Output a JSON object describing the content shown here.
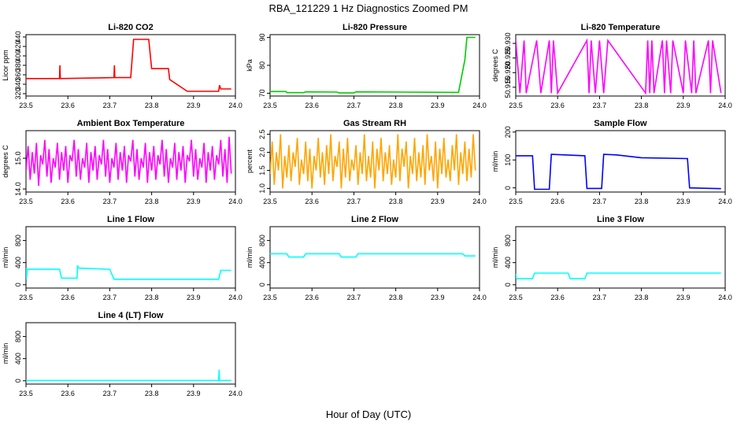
{
  "figure": {
    "title": "RBA_121229  1 Hz Diagnostics Zoomed PM",
    "xlabel": "Hour of Day (UTC)"
  },
  "chart_data": [
    {
      "type": "line",
      "title": "Li-820 CO2",
      "ylabel": "Licor ppm",
      "color": "#ff0000",
      "xlim": [
        23.5,
        24.0
      ],
      "ylim": [
        315,
        445
      ],
      "xticks": [
        "23.5",
        "23.6",
        "23.7",
        "23.8",
        "23.9",
        "24.0"
      ],
      "yticks": [
        "320",
        "340",
        "360",
        "380",
        "400",
        "420",
        "440"
      ],
      "series": [
        {
          "x": [
            23.5,
            23.58,
            23.581,
            23.582,
            23.71,
            23.711,
            23.712,
            23.75,
            23.757,
            23.793,
            23.8,
            23.84,
            23.843,
            23.885,
            23.96,
            23.962,
            23.965,
            23.99
          ],
          "y": [
            352,
            352,
            380,
            352,
            354,
            380,
            354,
            354,
            435,
            435,
            373,
            373,
            350,
            325,
            325,
            338,
            330,
            330
          ]
        }
      ]
    },
    {
      "type": "line",
      "title": "Li-820 Pressure",
      "ylabel": "kPa",
      "color": "#00cc00",
      "xlim": [
        23.5,
        24.0
      ],
      "ylim": [
        69,
        91
      ],
      "xticks": [
        "23.5",
        "23.6",
        "23.7",
        "23.8",
        "23.9",
        "24.0"
      ],
      "yticks": [
        "70",
        "80",
        "90"
      ],
      "series": [
        {
          "x": [
            23.5,
            23.538,
            23.54,
            23.58,
            23.585,
            23.66,
            23.665,
            23.7,
            23.705,
            23.95,
            23.952,
            23.965,
            23.97,
            23.99
          ],
          "y": [
            70.6,
            70.6,
            70.2,
            70.2,
            70.5,
            70.4,
            70.1,
            70.1,
            70.5,
            70.3,
            72,
            82,
            90,
            90
          ]
        }
      ]
    },
    {
      "type": "line",
      "title": "Li-820 Temperature",
      "ylabel": "degrees C",
      "color": "#ff00ff",
      "xlim": [
        23.5,
        24.0
      ],
      "ylim": [
        50.912,
        50.933
      ],
      "xticks": [
        "23.5",
        "23.6",
        "23.7",
        "23.8",
        "23.9",
        "24.0"
      ],
      "yticks": [
        "50.915",
        "50.920",
        "50.925",
        "50.930"
      ],
      "series": [
        {
          "x": [
            23.5,
            23.51,
            23.52,
            23.525,
            23.55,
            23.56,
            23.58,
            23.585,
            23.59,
            23.6,
            23.67,
            23.675,
            23.68,
            23.69,
            23.7,
            23.71,
            23.72,
            23.81,
            23.815,
            23.82,
            23.825,
            23.83,
            23.85,
            23.855,
            23.86,
            23.87,
            23.875,
            23.9,
            23.905,
            23.92,
            23.925,
            23.93,
            23.96,
            23.965,
            23.97,
            23.99
          ],
          "y": [
            50.931,
            50.913,
            50.931,
            50.913,
            50.931,
            50.913,
            50.931,
            50.913,
            50.931,
            50.913,
            50.931,
            50.913,
            50.931,
            50.913,
            50.931,
            50.913,
            50.931,
            50.913,
            50.931,
            50.913,
            50.931,
            50.913,
            50.931,
            50.913,
            50.931,
            50.913,
            50.931,
            50.913,
            50.931,
            50.913,
            50.931,
            50.913,
            50.931,
            50.913,
            50.931,
            50.913
          ]
        }
      ]
    },
    {
      "type": "line",
      "title": "Ambient Box Temperature",
      "ylabel": "degrees C",
      "color": "#ff00ff",
      "xlim": [
        23.5,
        24.0
      ],
      "ylim": [
        13.9,
        15.9
      ],
      "xticks": [
        "23.5",
        "23.6",
        "23.7",
        "23.8",
        "23.9",
        "24.0"
      ],
      "yticks": [
        "14.0",
        "15.0"
      ],
      "series": [
        {
          "x": [
            23.5,
            23.505,
            23.51,
            23.515,
            23.52,
            23.525,
            23.53,
            23.535,
            23.54,
            23.545,
            23.55,
            23.555,
            23.56,
            23.565,
            23.57,
            23.575,
            23.58,
            23.585,
            23.59,
            23.595,
            23.6,
            23.605,
            23.61,
            23.615,
            23.62,
            23.625,
            23.63,
            23.635,
            23.64,
            23.645,
            23.65,
            23.655,
            23.66,
            23.665,
            23.67,
            23.675,
            23.68,
            23.685,
            23.69,
            23.695,
            23.7,
            23.705,
            23.71,
            23.715,
            23.72,
            23.725,
            23.73,
            23.735,
            23.74,
            23.745,
            23.75,
            23.755,
            23.76,
            23.765,
            23.77,
            23.775,
            23.78,
            23.785,
            23.79,
            23.795,
            23.8,
            23.805,
            23.81,
            23.815,
            23.82,
            23.825,
            23.83,
            23.835,
            23.84,
            23.845,
            23.85,
            23.855,
            23.86,
            23.865,
            23.87,
            23.875,
            23.88,
            23.885,
            23.89,
            23.895,
            23.9,
            23.905,
            23.91,
            23.915,
            23.92,
            23.925,
            23.93,
            23.935,
            23.94,
            23.945,
            23.95,
            23.955,
            23.96,
            23.965,
            23.97,
            23.975,
            23.98,
            23.985,
            23.99
          ],
          "y": [
            14.6,
            15.4,
            14.3,
            15.2,
            14.5,
            15.5,
            14.1,
            15.1,
            14.8,
            15.6,
            14.4,
            15.3,
            14.2,
            15.0,
            14.7,
            15.5,
            14.3,
            15.2,
            14.6,
            15.4,
            14.2,
            15.1,
            14.9,
            15.6,
            14.4,
            15.3,
            14.3,
            15.0,
            14.7,
            15.5,
            14.2,
            15.2,
            14.6,
            15.4,
            14.3,
            15.1,
            14.8,
            15.6,
            14.4,
            15.3,
            14.2,
            15.0,
            14.7,
            15.5,
            14.3,
            15.2,
            14.6,
            15.4,
            14.2,
            15.1,
            14.9,
            15.6,
            14.4,
            15.3,
            14.3,
            15.0,
            14.7,
            15.5,
            14.2,
            15.2,
            14.6,
            15.4,
            14.3,
            15.1,
            14.8,
            15.6,
            14.4,
            15.3,
            14.2,
            15.0,
            14.7,
            15.5,
            14.3,
            15.2,
            14.6,
            15.4,
            14.2,
            15.1,
            14.9,
            15.6,
            14.4,
            15.3,
            14.3,
            15.0,
            14.7,
            15.5,
            14.2,
            15.2,
            14.6,
            15.4,
            14.3,
            15.1,
            14.8,
            15.6,
            14.4,
            15.3,
            14.2,
            15.7,
            14.5
          ]
        }
      ]
    },
    {
      "type": "line",
      "title": "Gas Stream RH",
      "ylabel": "percent",
      "color": "#ffa500",
      "xlim": [
        23.5,
        24.0
      ],
      "ylim": [
        0.9,
        2.6
      ],
      "xticks": [
        "23.5",
        "23.6",
        "23.7",
        "23.8",
        "23.9",
        "24.0"
      ],
      "yticks": [
        "1.0",
        "1.5",
        "2.0",
        "2.5"
      ],
      "series": [
        {
          "x": [
            23.5,
            23.505,
            23.51,
            23.515,
            23.52,
            23.525,
            23.53,
            23.535,
            23.54,
            23.545,
            23.55,
            23.555,
            23.56,
            23.565,
            23.57,
            23.575,
            23.58,
            23.585,
            23.59,
            23.595,
            23.6,
            23.605,
            23.61,
            23.615,
            23.62,
            23.625,
            23.63,
            23.635,
            23.64,
            23.645,
            23.65,
            23.655,
            23.66,
            23.665,
            23.67,
            23.675,
            23.68,
            23.685,
            23.69,
            23.695,
            23.7,
            23.705,
            23.71,
            23.715,
            23.72,
            23.725,
            23.73,
            23.735,
            23.74,
            23.745,
            23.75,
            23.755,
            23.76,
            23.765,
            23.77,
            23.775,
            23.78,
            23.785,
            23.79,
            23.795,
            23.8,
            23.805,
            23.81,
            23.815,
            23.82,
            23.825,
            23.83,
            23.835,
            23.84,
            23.845,
            23.85,
            23.855,
            23.86,
            23.865,
            23.87,
            23.875,
            23.88,
            23.885,
            23.89,
            23.895,
            23.9,
            23.905,
            23.91,
            23.915,
            23.92,
            23.925,
            23.93,
            23.935,
            23.94,
            23.945,
            23.95,
            23.955,
            23.96,
            23.965,
            23.97,
            23.975,
            23.98,
            23.985,
            23.99
          ],
          "y": [
            1.4,
            2.3,
            1.1,
            2.0,
            1.5,
            2.5,
            1.0,
            1.9,
            1.3,
            2.2,
            1.2,
            2.0,
            1.6,
            2.4,
            1.1,
            1.8,
            1.4,
            2.3,
            1.2,
            2.1,
            1.0,
            1.9,
            1.5,
            2.4,
            1.3,
            2.0,
            1.1,
            2.2,
            1.4,
            2.5,
            1.2,
            1.9,
            1.6,
            2.3,
            1.0,
            2.1,
            1.3,
            2.4,
            1.2,
            1.8,
            1.5,
            2.2,
            1.1,
            2.0,
            1.4,
            2.5,
            1.2,
            1.9,
            1.3,
            2.3,
            1.0,
            2.1,
            1.5,
            2.4,
            1.2,
            2.0,
            1.4,
            2.2,
            1.1,
            1.8,
            1.3,
            2.5,
            1.2,
            2.1,
            1.6,
            2.3,
            1.0,
            1.9,
            1.4,
            2.4,
            1.2,
            2.0,
            1.3,
            2.2,
            1.1,
            2.5,
            1.5,
            1.9,
            1.2,
            2.3,
            1.0,
            2.1,
            1.4,
            2.4,
            1.3,
            1.8,
            1.2,
            2.2,
            1.5,
            2.5,
            1.1,
            2.0,
            1.4,
            2.3,
            1.2,
            2.1,
            1.3,
            2.5,
            1.5
          ]
        }
      ]
    },
    {
      "type": "line",
      "title": "Sample Flow",
      "ylabel": "ml/min",
      "color": "#0000ff",
      "xlim": [
        23.5,
        24.0
      ],
      "ylim": [
        -15,
        205
      ],
      "xticks": [
        "23.5",
        "23.6",
        "23.7",
        "23.8",
        "23.9",
        "24.0"
      ],
      "yticks": [
        "0",
        "100",
        "200"
      ],
      "series": [
        {
          "x": [
            23.5,
            23.54,
            23.545,
            23.58,
            23.585,
            23.665,
            23.67,
            23.705,
            23.71,
            23.74,
            23.8,
            23.91,
            23.915,
            23.99
          ],
          "y": [
            115,
            115,
            -5,
            -5,
            120,
            115,
            -2,
            -2,
            120,
            118,
            108,
            105,
            0,
            -3
          ]
        }
      ]
    },
    {
      "type": "line",
      "title": "Line 1 Flow",
      "ylabel": "ml/min",
      "color": "#00ffff",
      "xlim": [
        23.5,
        24.0
      ],
      "ylim": [
        -60,
        1050
      ],
      "xticks": [
        "23.5",
        "23.6",
        "23.7",
        "23.8",
        "23.9",
        "24.0"
      ],
      "yticks": [
        "0",
        "400",
        "800"
      ],
      "series": [
        {
          "x": [
            23.5,
            23.501,
            23.503,
            23.58,
            23.585,
            23.622,
            23.623,
            23.626,
            23.7,
            23.71,
            23.96,
            23.965,
            23.99
          ],
          "y": [
            300,
            100,
            280,
            280,
            120,
            120,
            350,
            300,
            280,
            100,
            100,
            260,
            260
          ]
        }
      ]
    },
    {
      "type": "line",
      "title": "Line 2 Flow",
      "ylabel": "ml/min",
      "color": "#00ffff",
      "xlim": [
        23.5,
        24.0
      ],
      "ylim": [
        -60,
        1050
      ],
      "xticks": [
        "23.5",
        "23.6",
        "23.7",
        "23.8",
        "23.9",
        "24.0"
      ],
      "yticks": [
        "0",
        "400",
        "800"
      ],
      "series": [
        {
          "x": [
            23.5,
            23.54,
            23.545,
            23.58,
            23.585,
            23.665,
            23.67,
            23.705,
            23.71,
            23.96,
            23.965,
            23.99
          ],
          "y": [
            560,
            560,
            500,
            500,
            560,
            560,
            500,
            500,
            560,
            560,
            520,
            520
          ]
        }
      ]
    },
    {
      "type": "line",
      "title": "Line 3 Flow",
      "ylabel": "ml/min",
      "color": "#00ffff",
      "xlim": [
        23.5,
        24.0
      ],
      "ylim": [
        -60,
        1050
      ],
      "xticks": [
        "23.5",
        "23.6",
        "23.7",
        "23.8",
        "23.9",
        "24.0"
      ],
      "yticks": [
        "0",
        "400",
        "800"
      ],
      "series": [
        {
          "x": [
            23.5,
            23.501,
            23.503,
            23.54,
            23.545,
            23.625,
            23.63,
            23.665,
            23.67,
            23.99
          ],
          "y": [
            200,
            120,
            110,
            110,
            210,
            210,
            110,
            110,
            210,
            210
          ]
        }
      ]
    },
    {
      "type": "line",
      "title": "Line 4 (LT) Flow",
      "ylabel": "ml/min",
      "color": "#00ffff",
      "xlim": [
        23.5,
        24.0
      ],
      "ylim": [
        -60,
        1050
      ],
      "xticks": [
        "23.5",
        "23.6",
        "23.7",
        "23.8",
        "23.9",
        "24.0"
      ],
      "yticks": [
        "0",
        "400",
        "800"
      ],
      "series": [
        {
          "x": [
            23.5,
            23.96,
            23.961,
            23.962,
            23.99
          ],
          "y": [
            5,
            5,
            200,
            5,
            5
          ]
        }
      ]
    }
  ]
}
